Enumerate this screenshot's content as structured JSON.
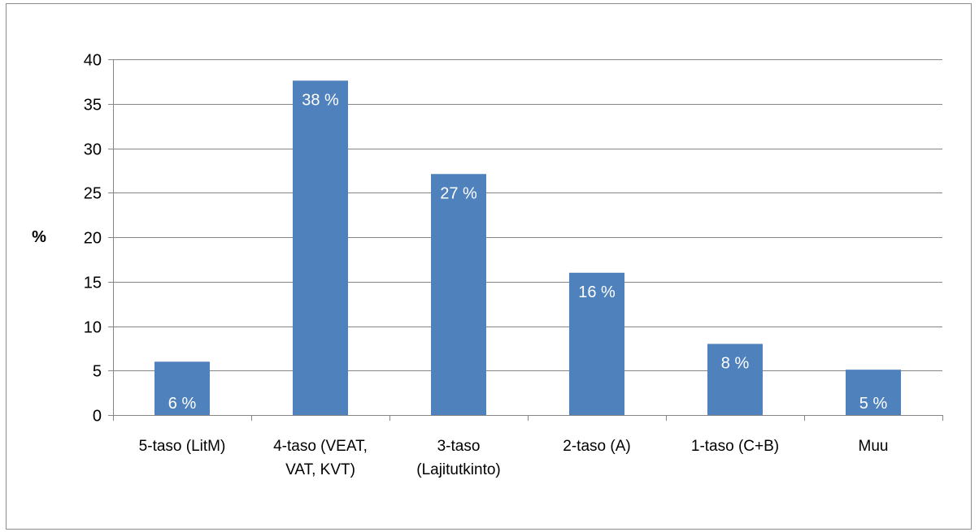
{
  "chart_data": {
    "type": "bar",
    "title": "",
    "xlabel": "",
    "ylabel": "%",
    "ylim": [
      0,
      40
    ],
    "yticks": [
      0,
      5,
      10,
      15,
      20,
      25,
      30,
      35,
      40
    ],
    "grid": true,
    "legend": "none",
    "categories": [
      [
        "5-taso (LitM)"
      ],
      [
        "4-taso (VEAT,",
        "VAT, KVT)"
      ],
      [
        "3-taso",
        "(Lajitutkinto)"
      ],
      [
        "2-taso (A)"
      ],
      [
        "1-taso (C+B)"
      ],
      [
        "Muu"
      ]
    ],
    "values": [
      6,
      37.6,
      27.1,
      16,
      8,
      5.1
    ],
    "data_labels": [
      "6 %",
      "38 %",
      "27 %",
      "16 %",
      "8 %",
      "5 %"
    ],
    "colors": {
      "bar": "#4f81bd",
      "grid": "#868686",
      "axis": "#868686",
      "frame": "#8c8c8c",
      "data_label": "#ffffff"
    }
  }
}
